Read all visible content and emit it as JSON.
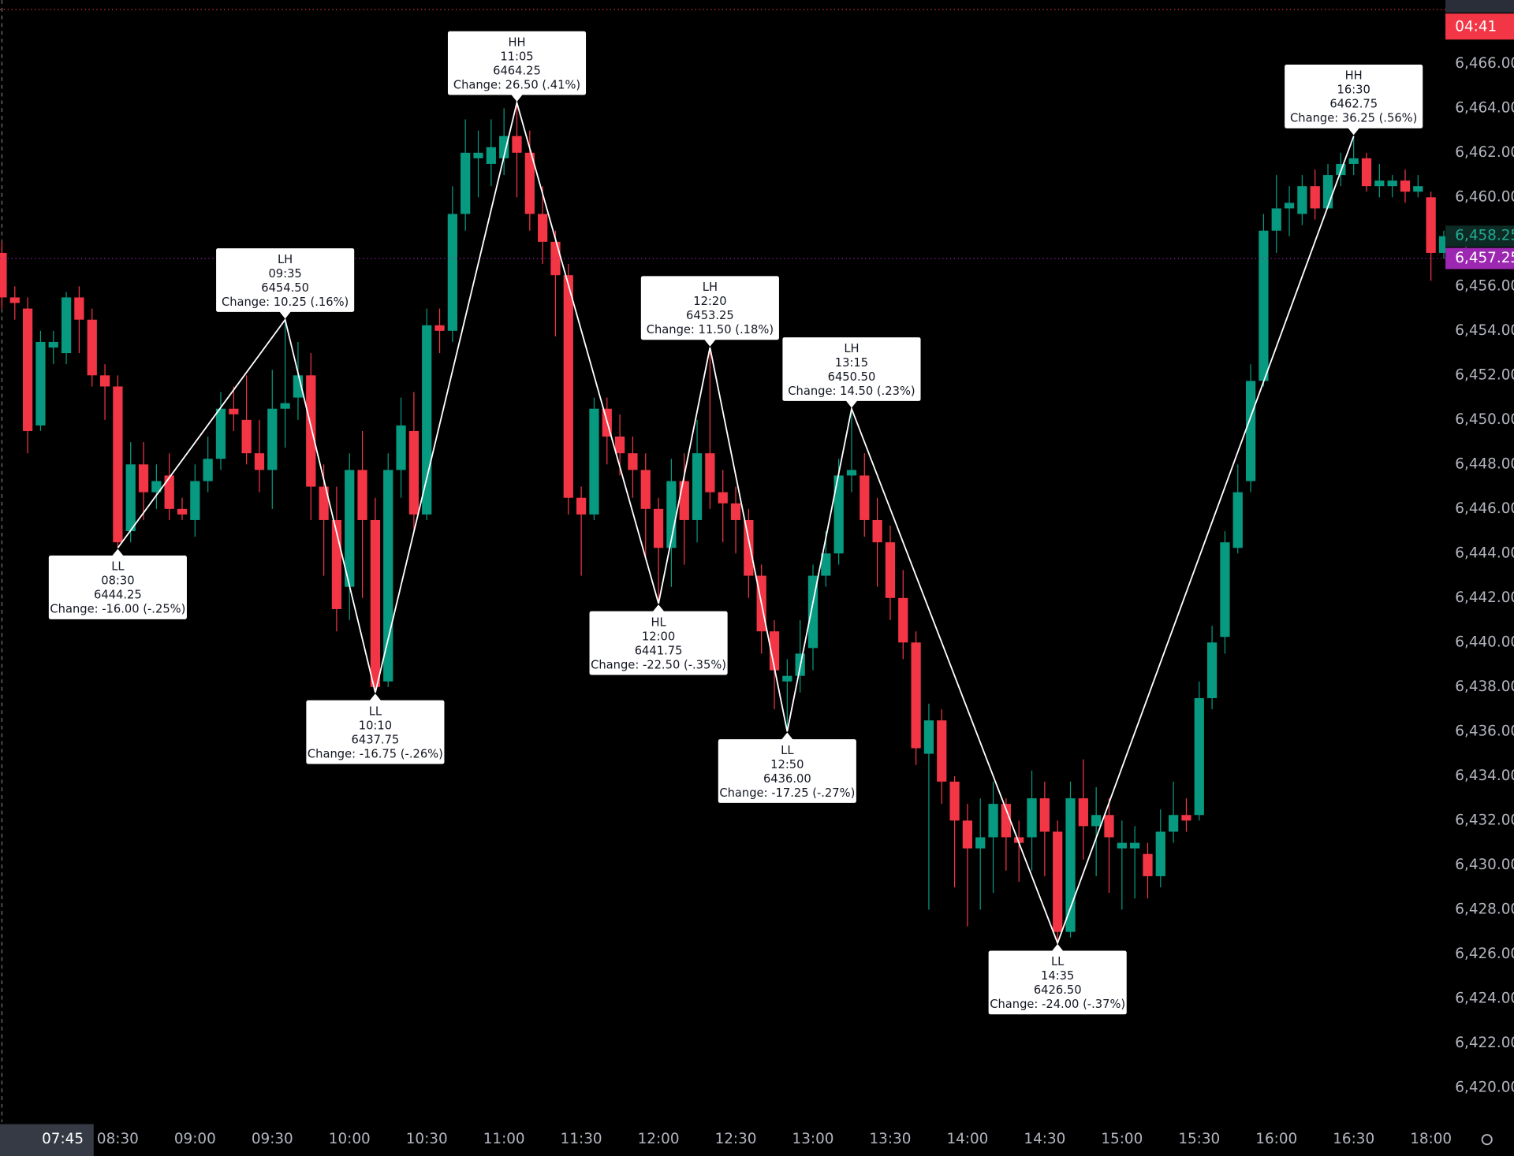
{
  "chart_data": {
    "type": "candlestick",
    "up_color": "#089981",
    "down_color": "#f23645",
    "grid": false,
    "ylim": [
      6418.58,
      6468.86
    ],
    "yticks": [
      {
        "value": 6420,
        "label": "6,420.00"
      },
      {
        "value": 6422,
        "label": "6,422.00"
      },
      {
        "value": 6424,
        "label": "6,424.00"
      },
      {
        "value": 6426,
        "label": "6,426.00"
      },
      {
        "value": 6428,
        "label": "6,428.00"
      },
      {
        "value": 6430,
        "label": "6,430.00"
      },
      {
        "value": 6432,
        "label": "6,432.00"
      },
      {
        "value": 6434,
        "label": "6,434.00"
      },
      {
        "value": 6436,
        "label": "6,436.00"
      },
      {
        "value": 6438,
        "label": "6,438.00"
      },
      {
        "value": 6440,
        "label": "6,440.00"
      },
      {
        "value": 6442,
        "label": "6,442.00"
      },
      {
        "value": 6444,
        "label": "6,444.00"
      },
      {
        "value": 6446,
        "label": "6,446.00"
      },
      {
        "value": 6448,
        "label": "6,448.00"
      },
      {
        "value": 6450,
        "label": "6,450.00"
      },
      {
        "value": 6452,
        "label": "6,452.00"
      },
      {
        "value": 6454,
        "label": "6,454.00"
      },
      {
        "value": 6456,
        "label": "6,456.00"
      },
      {
        "value": 6458,
        "label": "6,458.00"
      },
      {
        "value": 6460,
        "label": "6,460.00"
      },
      {
        "value": 6462,
        "label": "6,462.00"
      },
      {
        "value": 6464,
        "label": "6,464.00"
      },
      {
        "value": 6466,
        "label": "6,466.00"
      }
    ],
    "xticks": [
      "08:30",
      "09:00",
      "09:30",
      "10:00",
      "10:30",
      "11:00",
      "11:30",
      "12:00",
      "12:30",
      "13:00",
      "13:30",
      "14:00",
      "14:30",
      "15:00",
      "15:30",
      "16:00",
      "16:30",
      "18:00"
    ],
    "candles": {
      "x": [
        "07:45",
        "07:50",
        "07:55",
        "08:00",
        "08:05",
        "08:10",
        "08:15",
        "08:20",
        "08:25",
        "08:30",
        "08:35",
        "08:40",
        "08:45",
        "08:50",
        "08:55",
        "09:00",
        "09:05",
        "09:10",
        "09:15",
        "09:20",
        "09:25",
        "09:30",
        "09:35",
        "09:40",
        "09:45",
        "09:50",
        "09:55",
        "10:00",
        "10:05",
        "10:10",
        "10:15",
        "10:20",
        "10:25",
        "10:30",
        "10:35",
        "10:40",
        "10:45",
        "10:50",
        "10:55",
        "11:00",
        "11:05",
        "11:10",
        "11:15",
        "11:20",
        "11:25",
        "11:30",
        "11:35",
        "11:40",
        "11:45",
        "11:50",
        "11:55",
        "12:00",
        "12:05",
        "12:10",
        "12:15",
        "12:20",
        "12:25",
        "12:30",
        "12:35",
        "12:40",
        "12:45",
        "12:50",
        "12:55",
        "13:00",
        "13:05",
        "13:10",
        "13:15",
        "13:20",
        "13:25",
        "13:30",
        "13:35",
        "13:40",
        "13:45",
        "13:50",
        "13:55",
        "14:00",
        "14:05",
        "14:10",
        "14:15",
        "14:20",
        "14:25",
        "14:30",
        "14:35",
        "14:40",
        "14:45",
        "14:50",
        "14:55",
        "15:00",
        "15:05",
        "15:10",
        "15:15",
        "15:20",
        "15:25",
        "15:30",
        "15:35",
        "15:40",
        "15:45",
        "15:50",
        "15:55",
        "16:00",
        "16:05",
        "16:10",
        "16:15",
        "16:20",
        "16:25",
        "16:30",
        "16:35",
        "16:40",
        "16:45",
        "16:50",
        "16:55",
        "18:00",
        "18:05"
      ],
      "open": [
        6457.5,
        6455.5,
        6455,
        6449.75,
        6453.25,
        6453,
        6455.5,
        6454.5,
        6452,
        6451.5,
        6445,
        6448,
        6446.75,
        6447.5,
        6446,
        6445.5,
        6447.25,
        6448.25,
        6450.5,
        6450,
        6448.5,
        6447.75,
        6450.5,
        6451,
        6452,
        6447,
        6445.5,
        6442.5,
        6447.75,
        6445.5,
        6438.25,
        6447.75,
        6449.5,
        6445.75,
        6454.25,
        6454,
        6459.25,
        6461.75,
        6461.5,
        6461.75,
        6462.75,
        6462,
        6459.25,
        6458,
        6456.5,
        6446.5,
        6445.75,
        6450.5,
        6449.25,
        6448.5,
        6447.75,
        6446,
        6444.25,
        6447.25,
        6445.5,
        6448.5,
        6446.75,
        6446.25,
        6445.5,
        6443,
        6440.5,
        6438.25,
        6438.5,
        6439.75,
        6443,
        6444,
        6447.5,
        6447.5,
        6445.5,
        6444.5,
        6442,
        6440,
        6435,
        6436.5,
        6433.75,
        6432,
        6430.75,
        6431.25,
        6432.75,
        6431.25,
        6431.25,
        6433,
        6431.5,
        6427,
        6433,
        6431.75,
        6432.25,
        6430.75,
        6430.75,
        6430.5,
        6429.5,
        6431.5,
        6432.25,
        6432.25,
        6437.5,
        6440.25,
        6444.25,
        6447.25,
        6451.75,
        6458.5,
        6459.5,
        6459.25,
        6460.5,
        6459.5,
        6461,
        6461.5,
        6461.75,
        6460.5,
        6460.5,
        6460.75,
        6460.25,
        6460,
        6457.5
      ],
      "high": [
        6458,
        6456,
        6455.5,
        6454,
        6454,
        6455.75,
        6456,
        6455,
        6452.5,
        6452,
        6449,
        6449,
        6448,
        6448.5,
        6446.5,
        6448,
        6449.25,
        6451.25,
        6451.5,
        6452,
        6450,
        6452.25,
        6454.5,
        6453.5,
        6453,
        6448,
        6447,
        6448.5,
        6449.5,
        6446.5,
        6448.5,
        6451,
        6451.25,
        6455,
        6455,
        6460.5,
        6463.5,
        6463,
        6463.5,
        6464,
        6464.25,
        6463,
        6460.5,
        6458.5,
        6457,
        6447,
        6451,
        6451,
        6450.25,
        6449.25,
        6448.5,
        6446.5,
        6448.25,
        6448.5,
        6450,
        6453.25,
        6447.75,
        6447,
        6446,
        6443.5,
        6441,
        6439.25,
        6441,
        6443.5,
        6445,
        6448.25,
        6450.5,
        6448.5,
        6446.5,
        6445.25,
        6443.25,
        6440.5,
        6437.25,
        6437,
        6434,
        6432.75,
        6433,
        6433.75,
        6433,
        6432,
        6434.25,
        6433.75,
        6432,
        6433.75,
        6434.75,
        6433.5,
        6433,
        6432,
        6431.75,
        6431,
        6432.5,
        6433.75,
        6433,
        6438.25,
        6440.75,
        6445,
        6448,
        6452.5,
        6459.25,
        6461,
        6460.5,
        6461,
        6461.25,
        6461.5,
        6462,
        6462.75,
        6462,
        6461.5,
        6461,
        6461.25,
        6461,
        6460.25,
        6458.5
      ],
      "low": [
        6455,
        6454.5,
        6448.5,
        6449.5,
        6452.5,
        6452.5,
        6453,
        6451.5,
        6450,
        6444.25,
        6444.5,
        6445.5,
        6446,
        6445.5,
        6445.5,
        6444.75,
        6446.75,
        6447.75,
        6449.5,
        6448,
        6446.75,
        6446,
        6448.75,
        6450,
        6445.5,
        6443,
        6440.5,
        6441,
        6442,
        6437.75,
        6438,
        6446.5,
        6445,
        6445.5,
        6453,
        6453.5,
        6458.5,
        6460,
        6460.5,
        6461,
        6460,
        6458.5,
        6457,
        6453.75,
        6445.75,
        6443,
        6445.5,
        6448,
        6447.5,
        6446.5,
        6443.75,
        6441.75,
        6442.5,
        6443.5,
        6444.5,
        6446,
        6444.5,
        6444,
        6442,
        6439.5,
        6437,
        6436,
        6437.75,
        6438.75,
        6442.5,
        6443.5,
        6446.75,
        6444.75,
        6442.5,
        6441,
        6439.25,
        6434.5,
        6428,
        6432.75,
        6429,
        6427.25,
        6428,
        6428.75,
        6429.75,
        6429.25,
        6429.75,
        6429.5,
        6426.5,
        6426.75,
        6430.25,
        6429.5,
        6428.75,
        6428,
        6428.5,
        6428.5,
        6429,
        6431,
        6431.5,
        6432,
        6437,
        6439.5,
        6444,
        6446.75,
        6451.5,
        6457.5,
        6458.25,
        6458.75,
        6459,
        6459.5,
        6460.5,
        6461,
        6460.25,
        6460,
        6460,
        6459.75,
        6460,
        6456.25,
        6457.25
      ],
      "close": [
        6455.5,
        6455.25,
        6449.5,
        6453.5,
        6453.5,
        6455.5,
        6454.5,
        6452,
        6451.5,
        6444.5,
        6448,
        6446.75,
        6447.25,
        6446,
        6445.75,
        6447.25,
        6448.25,
        6450.5,
        6450.25,
        6448.5,
        6447.75,
        6450.5,
        6450.75,
        6452,
        6447,
        6445.5,
        6441.5,
        6447.75,
        6445.5,
        6438,
        6447.75,
        6449.75,
        6445.75,
        6454.25,
        6454,
        6459.25,
        6462,
        6462,
        6462.25,
        6462.75,
        6462,
        6459.25,
        6458,
        6456.5,
        6446.5,
        6445.75,
        6450.5,
        6449.25,
        6448.5,
        6447.75,
        6446,
        6444.25,
        6447.25,
        6445.5,
        6448.5,
        6446.75,
        6446.25,
        6445.5,
        6443,
        6440.5,
        6438.75,
        6438.5,
        6439.5,
        6443,
        6444,
        6447.5,
        6447.75,
        6445.5,
        6444.5,
        6442,
        6440,
        6435.25,
        6436.5,
        6433.75,
        6432,
        6430.75,
        6431.25,
        6432.75,
        6431.25,
        6431,
        6433,
        6431.5,
        6427,
        6433,
        6431.75,
        6432.25,
        6431.25,
        6431,
        6431,
        6429.5,
        6431.5,
        6432.25,
        6432,
        6437.5,
        6440,
        6444.5,
        6446.75,
        6451.75,
        6458.5,
        6459.5,
        6459.75,
        6460.5,
        6459.5,
        6461,
        6461.5,
        6461.75,
        6460.5,
        6460.75,
        6460.75,
        6460.25,
        6460.5,
        6457.5,
        6458.25
      ]
    },
    "zigzag": {
      "color": "#ffffff",
      "x": [
        "08:30",
        "09:35",
        "10:10",
        "11:05",
        "12:00",
        "12:20",
        "12:50",
        "13:15",
        "14:35",
        "16:30"
      ],
      "values": [
        6444.25,
        6454.5,
        6437.75,
        6464.25,
        6441.75,
        6453.25,
        6436,
        6450.5,
        6426.5,
        6462.75
      ],
      "value_labels": [
        "6444.25",
        "6454.50",
        "6437.75",
        "6464.25",
        "6441.75",
        "6453.25",
        "6436.00",
        "6450.50",
        "6426.50",
        "6462.75"
      ],
      "tags": [
        "LL",
        "LH",
        "LL",
        "HH",
        "HL",
        "LH",
        "LL",
        "LH",
        "LL",
        "HH"
      ],
      "changes": [
        "Change: -16.00 (-.25%)",
        "Change: 10.25 (.16%)",
        "Change: -16.75 (-.26%)",
        "Change: 26.50 (.41%)",
        "Change: -22.50 (-.35%)",
        "Change: 11.50 (.18%)",
        "Change: -17.25 (-.27%)",
        "Change: 14.50 (.23%)",
        "Change: -24.00 (-.37%)",
        "Change: 36.25 (.56%)"
      ]
    },
    "price_badges": [
      {
        "value": 6458.25,
        "label": "6,458.25",
        "color": "#22ab94",
        "background": "#0d2a25"
      },
      {
        "value": 6457.25,
        "label": "6,457.25",
        "color": "#ffffff",
        "background": "#9c27b0"
      }
    ],
    "countdown": "04:41",
    "crosshair_time": "07:45"
  }
}
